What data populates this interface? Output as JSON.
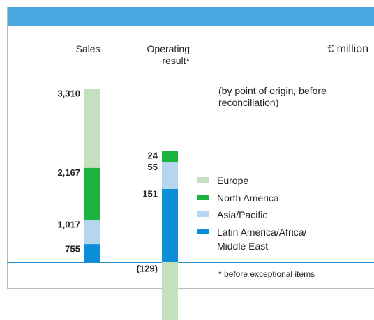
{
  "chart_data": {
    "type": "bar",
    "stacked": true,
    "unit": "€ million",
    "note": "(by point of origin, before reconciliation)",
    "footnote": "* before exceptional items",
    "categories": [
      "Sales",
      "Operating result*"
    ],
    "series": [
      {
        "name": "Latin America/Africa/ Middle East",
        "color": "#0a8fd6",
        "values": [
          755,
          151
        ]
      },
      {
        "name": "Asia/Pacific",
        "color": "#b7d4f0",
        "values": [
          1017,
          55
        ]
      },
      {
        "name": "North America",
        "color": "#1db33f",
        "values": [
          2167,
          24
        ]
      },
      {
        "name": "Europe",
        "color": "#c5e0bf",
        "values": [
          3310,
          -129
        ],
        "value_labels": [
          "3,310",
          "(129)"
        ]
      }
    ],
    "value_labels": [
      [
        "755",
        "151"
      ],
      [
        "1,017",
        "55"
      ],
      [
        "2,167",
        "24"
      ],
      [
        "3,310",
        "(129)"
      ]
    ]
  }
}
